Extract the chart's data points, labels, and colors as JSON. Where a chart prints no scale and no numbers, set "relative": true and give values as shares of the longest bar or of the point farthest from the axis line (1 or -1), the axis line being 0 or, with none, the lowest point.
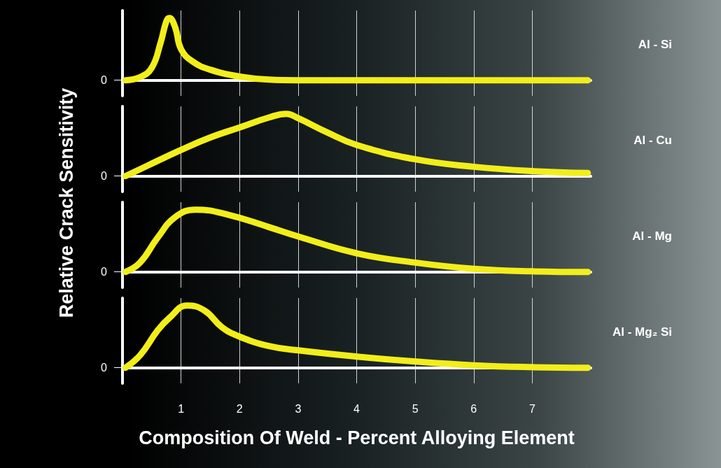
{
  "chart_data": [
    {
      "type": "line",
      "relative": true,
      "ylabel": "Relative Crack Sensitivity",
      "xlim": [
        0,
        8
      ],
      "xticks": [
        1,
        2,
        3,
        4,
        5,
        6,
        7
      ],
      "annotations": [
        "0"
      ],
      "grid": "x",
      "tick_labels": false,
      "line_style": "solid",
      "x": [
        0.05,
        0.3,
        0.5,
        0.65,
        0.75,
        0.8,
        0.9,
        1.0,
        1.2,
        1.5,
        2.0,
        2.5,
        3.0,
        5.0,
        7.95
      ],
      "series": [
        {
          "name": "Al - Si",
          "color": "#f2ee1a",
          "values": [
            0,
            0.05,
            0.2,
            0.6,
            0.95,
            1,
            0.85,
            0.5,
            0.3,
            0.17,
            0.06,
            0.01,
            0,
            0,
            0
          ]
        }
      ]
    },
    {
      "type": "line",
      "relative": true,
      "xlim": [
        0,
        8
      ],
      "xticks": [
        1,
        2,
        3,
        4,
        5,
        6,
        7
      ],
      "annotations": [
        "0"
      ],
      "grid": "x",
      "tick_labels": false,
      "line_style": "solid",
      "x": [
        0.05,
        0.5,
        1,
        1.5,
        2,
        2.5,
        2.8,
        3,
        3.5,
        4,
        5,
        6,
        7,
        7.95
      ],
      "series": [
        {
          "name": "Al - Cu",
          "color": "#f2ee1a",
          "values": [
            0,
            0.2,
            0.42,
            0.62,
            0.78,
            0.94,
            1,
            0.93,
            0.7,
            0.5,
            0.27,
            0.15,
            0.08,
            0.05
          ]
        }
      ]
    },
    {
      "type": "line",
      "relative": true,
      "xlim": [
        0,
        8
      ],
      "xticks": [
        1,
        2,
        3,
        4,
        5,
        6,
        7
      ],
      "annotations": [
        "0"
      ],
      "grid": "x",
      "tick_labels": false,
      "line_style": "solid",
      "x": [
        0.05,
        0.3,
        0.6,
        0.9,
        1.25,
        1.8,
        2.5,
        3,
        4,
        5,
        6,
        7,
        7.95
      ],
      "series": [
        {
          "name": "Al - Mg",
          "color": "#f2ee1a",
          "values": [
            0,
            0.15,
            0.55,
            0.88,
            1,
            0.92,
            0.72,
            0.57,
            0.3,
            0.15,
            0.05,
            0.01,
            0
          ]
        }
      ]
    },
    {
      "type": "line",
      "relative": true,
      "xlabel": "Composition Of Weld - Percent Alloying Element",
      "xlim": [
        0,
        8
      ],
      "xticks": [
        1,
        2,
        3,
        4,
        5,
        6,
        7
      ],
      "annotations": [
        "0"
      ],
      "grid": "x",
      "tick_labels": "x",
      "line_style": "solid",
      "x": [
        0.05,
        0.3,
        0.6,
        0.8,
        1.1,
        1.4,
        1.7,
        2,
        2.5,
        3,
        4,
        5,
        6,
        7,
        7.95
      ],
      "series": [
        {
          "name": "Al - Mg₂ Si",
          "color": "#f2ee1a",
          "values": [
            0,
            0.2,
            0.6,
            0.8,
            1,
            0.92,
            0.65,
            0.5,
            0.35,
            0.28,
            0.18,
            0.1,
            0.04,
            0.01,
            0
          ]
        }
      ]
    }
  ]
}
